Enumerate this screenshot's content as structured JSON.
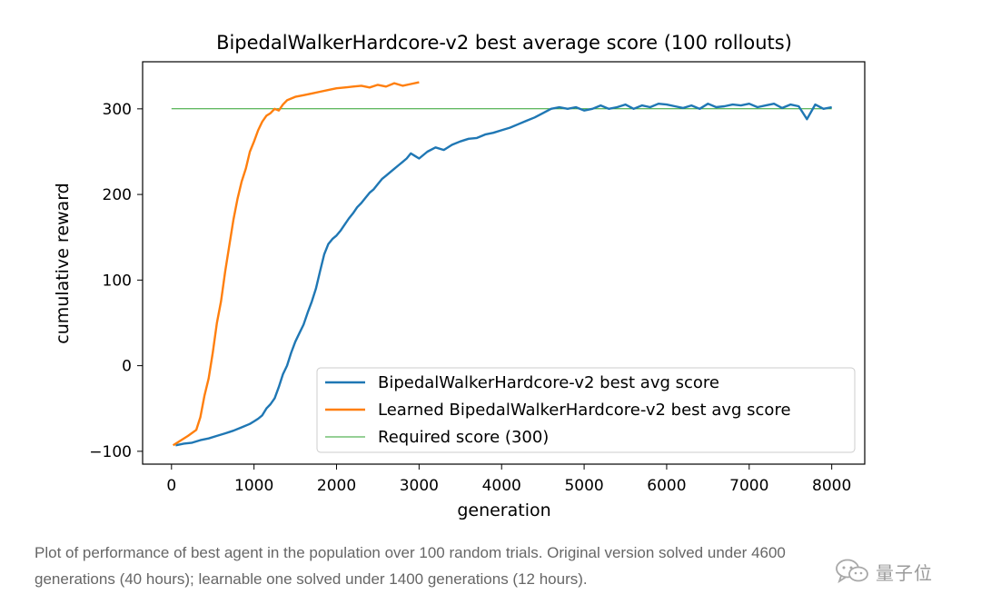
{
  "chart_data": {
    "type": "line",
    "title": "BipedalWalkerHardcore-v2 best average score (100 rollouts)",
    "xlabel": "generation",
    "ylabel": "cumulative reward",
    "xlim": [
      -350,
      8400
    ],
    "ylim": [
      -115,
      355
    ],
    "xticks": [
      0,
      1000,
      2000,
      3000,
      4000,
      5000,
      6000,
      7000,
      8000
    ],
    "yticks": [
      -100,
      0,
      100,
      200,
      300
    ],
    "grid": false,
    "legend_position": "lower-right",
    "series": [
      {
        "name": "BipedalWalkerHardcore-v2 best avg score",
        "color": "#1f77b4",
        "x": [
          50,
          150,
          250,
          350,
          450,
          550,
          650,
          750,
          850,
          950,
          1000,
          1050,
          1100,
          1150,
          1200,
          1250,
          1300,
          1350,
          1400,
          1450,
          1500,
          1550,
          1600,
          1650,
          1700,
          1750,
          1800,
          1850,
          1900,
          1950,
          2000,
          2050,
          2100,
          2150,
          2200,
          2250,
          2300,
          2350,
          2400,
          2450,
          2500,
          2550,
          2600,
          2650,
          2700,
          2750,
          2800,
          2850,
          2900,
          2950,
          3000,
          3100,
          3200,
          3300,
          3400,
          3500,
          3600,
          3700,
          3800,
          3900,
          4000,
          4100,
          4200,
          4300,
          4400,
          4500,
          4600,
          4700,
          4800,
          4900,
          5000,
          5100,
          5200,
          5300,
          5400,
          5500,
          5600,
          5700,
          5800,
          5900,
          6000,
          6100,
          6200,
          6300,
          6400,
          6500,
          6600,
          6700,
          6800,
          6900,
          7000,
          7100,
          7200,
          7300,
          7400,
          7500,
          7600,
          7700,
          7800,
          7900,
          8000
        ],
        "y": [
          -93,
          -91,
          -90,
          -87,
          -85,
          -82,
          -79,
          -76,
          -72,
          -68,
          -65,
          -62,
          -58,
          -50,
          -45,
          -38,
          -25,
          -10,
          0,
          15,
          28,
          38,
          48,
          62,
          75,
          90,
          110,
          130,
          142,
          148,
          152,
          158,
          165,
          172,
          178,
          185,
          190,
          196,
          202,
          206,
          212,
          218,
          222,
          226,
          230,
          234,
          238,
          242,
          248,
          245,
          242,
          250,
          255,
          252,
          258,
          262,
          265,
          266,
          270,
          272,
          275,
          278,
          282,
          286,
          290,
          295,
          300,
          302,
          300,
          302,
          298,
          300,
          304,
          300,
          302,
          305,
          300,
          304,
          302,
          306,
          305,
          303,
          301,
          304,
          300,
          306,
          302,
          303,
          305,
          304,
          306,
          302,
          304,
          306,
          301,
          305,
          303,
          288,
          305,
          300,
          302
        ]
      },
      {
        "name": "Learned BipedalWalkerHardcore-v2 best avg score",
        "color": "#ff7f0e",
        "x": [
          20,
          100,
          200,
          300,
          350,
          400,
          450,
          500,
          550,
          600,
          650,
          700,
          750,
          800,
          850,
          900,
          950,
          1000,
          1050,
          1100,
          1150,
          1200,
          1250,
          1300,
          1350,
          1400,
          1450,
          1500,
          1600,
          1700,
          1800,
          1900,
          2000,
          2100,
          2200,
          2300,
          2400,
          2500,
          2600,
          2700,
          2800,
          2900,
          3000
        ],
        "y": [
          -93,
          -88,
          -82,
          -75,
          -60,
          -35,
          -15,
          15,
          50,
          75,
          110,
          140,
          170,
          195,
          215,
          230,
          250,
          262,
          275,
          285,
          292,
          295,
          300,
          298,
          305,
          310,
          312,
          314,
          316,
          318,
          320,
          322,
          324,
          325,
          326,
          327,
          325,
          328,
          326,
          330,
          327,
          329,
          331
        ]
      },
      {
        "name": "Required score (300)",
        "color": "#2ca02c",
        "x": [
          0,
          8000
        ],
        "y": [
          300,
          300
        ]
      }
    ]
  },
  "caption": {
    "line1": "Plot of performance of best agent in the population over 100 random trials. Original version solved under 4600",
    "line2": "generations (40 hours); learnable one solved under 1400 generations (12 hours)."
  },
  "watermark": {
    "text": "量子位",
    "icon": "wechat-icon"
  }
}
